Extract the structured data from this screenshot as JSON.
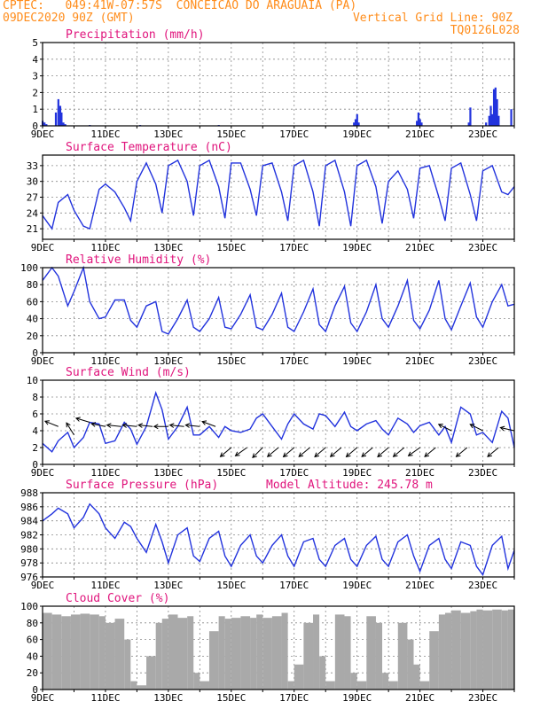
{
  "header": {
    "line1": "CPTEC:   049:41W-07:57S  CONCEICAO DO ARAGUAIA (PA)",
    "line2_left": "09DEC2020 90Z (GMT)",
    "line2_right": "Vertical Grid Line: 90Z",
    "line3_right": "TQ0126L028"
  },
  "colors": {
    "header": "#ff8c1a",
    "title": "#e0147c",
    "line": "#2233dd",
    "bar": "#2233dd",
    "cloud": "#a9a9a9",
    "wind_arrow": "#000000"
  },
  "chart_data": [
    {
      "type": "bar",
      "title": "Precipitation (mm/h)",
      "ylim": [
        0,
        5
      ],
      "yticks": [
        0,
        1,
        2,
        3,
        4,
        5
      ],
      "x_tick_labels": [
        "9DEC",
        "11DEC",
        "13DEC",
        "15DEC",
        "17DEC",
        "19DEC",
        "21DEC",
        "23DEC"
      ],
      "x_range_days": [
        9,
        24
      ],
      "x": [
        9.0,
        9.06,
        9.12,
        9.42,
        9.5,
        9.56,
        9.6,
        9.66,
        9.72,
        10.5,
        12.1,
        14.6,
        18.9,
        18.95,
        19.0,
        19.05,
        20.9,
        20.95,
        21.0,
        21.05,
        22.55,
        22.6,
        23.1,
        23.2,
        23.25,
        23.3,
        23.35,
        23.4,
        23.45,
        23.5,
        23.9
      ],
      "values": [
        0.3,
        0.2,
        0.1,
        0.8,
        1.6,
        1.2,
        0.8,
        0.2,
        0.1,
        0.05,
        0.05,
        0.05,
        0.2,
        0.4,
        0.7,
        0.2,
        0.3,
        0.8,
        0.4,
        0.2,
        0.2,
        1.1,
        0.2,
        0.6,
        1.2,
        0.7,
        2.2,
        2.3,
        1.6,
        0.6,
        1.0
      ]
    },
    {
      "type": "line",
      "title": "Surface Temperature (nC)",
      "ylim": [
        19,
        35
      ],
      "yticks": [
        21,
        24,
        27,
        30,
        33
      ],
      "x_tick_labels": [
        "9DEC",
        "11DEC",
        "13DEC",
        "15DEC",
        "17DEC",
        "19DEC",
        "21DEC",
        "23DEC"
      ],
      "x_range_days": [
        9,
        24
      ],
      "x": [
        9.0,
        9.3,
        9.5,
        9.8,
        10.0,
        10.3,
        10.5,
        10.8,
        11.0,
        11.3,
        11.6,
        11.8,
        12.0,
        12.3,
        12.6,
        12.8,
        13.0,
        13.3,
        13.6,
        13.8,
        14.0,
        14.3,
        14.6,
        14.8,
        15.0,
        15.3,
        15.6,
        15.8,
        16.0,
        16.3,
        16.6,
        16.8,
        17.0,
        17.3,
        17.6,
        17.8,
        18.0,
        18.3,
        18.6,
        18.8,
        19.0,
        19.3,
        19.6,
        19.8,
        20.0,
        20.3,
        20.6,
        20.8,
        21.0,
        21.3,
        21.6,
        21.8,
        22.0,
        22.3,
        22.6,
        22.8,
        23.0,
        23.3,
        23.6,
        23.8,
        24.0
      ],
      "values": [
        23.5,
        21.0,
        26.0,
        27.5,
        24.5,
        21.5,
        21.0,
        28.5,
        29.5,
        28.0,
        25.0,
        22.5,
        30.0,
        33.5,
        29.5,
        24.0,
        33.0,
        34.0,
        30.0,
        23.5,
        33.0,
        34.0,
        29.0,
        23.0,
        33.5,
        33.5,
        28.5,
        23.5,
        33.0,
        33.5,
        28.0,
        22.5,
        33.0,
        34.0,
        28.0,
        21.5,
        33.0,
        34.0,
        28.0,
        21.5,
        33.0,
        34.0,
        29.0,
        22.0,
        30.0,
        32.0,
        28.5,
        23.0,
        32.5,
        33.0,
        27.0,
        22.5,
        32.5,
        33.5,
        27.5,
        22.5,
        32.0,
        33.0,
        28.0,
        27.5,
        29.0
      ]
    },
    {
      "type": "line",
      "title": "Relative Humidity (%)",
      "ylim": [
        0,
        100
      ],
      "yticks": [
        0,
        20,
        40,
        60,
        80,
        100
      ],
      "x_tick_labels": [
        "9DEC",
        "11DEC",
        "13DEC",
        "15DEC",
        "17DEC",
        "19DEC",
        "21DEC",
        "23DEC"
      ],
      "x_range_days": [
        9,
        24
      ],
      "x": [
        9.0,
        9.3,
        9.5,
        9.8,
        10.0,
        10.3,
        10.5,
        10.8,
        11.0,
        11.3,
        11.6,
        11.8,
        12.0,
        12.3,
        12.6,
        12.8,
        13.0,
        13.3,
        13.6,
        13.8,
        14.0,
        14.3,
        14.6,
        14.8,
        15.0,
        15.3,
        15.6,
        15.8,
        16.0,
        16.3,
        16.6,
        16.8,
        17.0,
        17.3,
        17.6,
        17.8,
        18.0,
        18.3,
        18.6,
        18.8,
        19.0,
        19.3,
        19.6,
        19.8,
        20.0,
        20.3,
        20.6,
        20.8,
        21.0,
        21.3,
        21.6,
        21.8,
        22.0,
        22.3,
        22.6,
        22.8,
        23.0,
        23.3,
        23.6,
        23.8,
        24.0
      ],
      "values": [
        85,
        100,
        90,
        55,
        72,
        100,
        60,
        40,
        42,
        62,
        62,
        38,
        30,
        55,
        60,
        25,
        22,
        40,
        62,
        30,
        25,
        40,
        65,
        30,
        28,
        45,
        68,
        30,
        27,
        45,
        70,
        30,
        25,
        48,
        75,
        33,
        25,
        55,
        78,
        35,
        25,
        48,
        80,
        40,
        30,
        55,
        85,
        38,
        28,
        50,
        85,
        40,
        27,
        55,
        82,
        42,
        30,
        60,
        80,
        55,
        57
      ]
    },
    {
      "type": "line",
      "title": "Surface Wind (m/s)",
      "ylim": [
        0,
        10
      ],
      "yticks": [
        0,
        2,
        4,
        6,
        8,
        10
      ],
      "x_tick_labels": [
        "9DEC",
        "11DEC",
        "13DEC",
        "15DEC",
        "17DEC",
        "19DEC",
        "21DEC",
        "23DEC"
      ],
      "x_range_days": [
        9,
        24
      ],
      "x": [
        9.0,
        9.3,
        9.5,
        9.8,
        10.0,
        10.3,
        10.5,
        10.8,
        11.0,
        11.3,
        11.6,
        11.8,
        12.0,
        12.3,
        12.6,
        12.8,
        13.0,
        13.3,
        13.6,
        13.8,
        14.0,
        14.3,
        14.6,
        14.8,
        15.0,
        15.3,
        15.6,
        15.8,
        16.0,
        16.3,
        16.6,
        16.8,
        17.0,
        17.3,
        17.6,
        17.8,
        18.0,
        18.3,
        18.6,
        18.8,
        19.0,
        19.3,
        19.6,
        19.8,
        20.0,
        20.3,
        20.6,
        20.8,
        21.0,
        21.3,
        21.6,
        21.8,
        22.0,
        22.3,
        22.6,
        22.8,
        23.0,
        23.3,
        23.6,
        23.8,
        24.0
      ],
      "values": [
        2.5,
        1.5,
        2.8,
        3.8,
        2.0,
        3.2,
        5.0,
        4.8,
        2.5,
        2.8,
        5.0,
        4.2,
        2.4,
        4.5,
        8.5,
        6.5,
        3.0,
        4.5,
        6.8,
        3.5,
        3.5,
        4.5,
        3.2,
        4.5,
        4.0,
        3.8,
        4.2,
        5.5,
        6.0,
        4.5,
        3.0,
        4.8,
        6.0,
        4.8,
        4.2,
        6.0,
        5.8,
        4.5,
        6.2,
        4.5,
        4.0,
        4.8,
        5.2,
        4.2,
        3.5,
        5.5,
        4.8,
        3.8,
        4.6,
        5.0,
        3.5,
        4.5,
        2.6,
        6.8,
        6.0,
        3.5,
        3.8,
        2.6,
        6.3,
        5.5,
        2.0
      ]
    },
    {
      "type": "line",
      "title": "Surface Pressure (hPa)",
      "annotation": "Model Altitude: 245.78 m",
      "ylim": [
        976,
        988
      ],
      "yticks": [
        976,
        978,
        980,
        982,
        984,
        986,
        988
      ],
      "x_tick_labels": [
        "9DEC",
        "11DEC",
        "13DEC",
        "15DEC",
        "17DEC",
        "19DEC",
        "21DEC",
        "23DEC"
      ],
      "x_range_days": [
        9,
        24
      ],
      "x": [
        9.0,
        9.3,
        9.5,
        9.8,
        10.0,
        10.3,
        10.5,
        10.8,
        11.0,
        11.3,
        11.6,
        11.8,
        12.0,
        12.3,
        12.6,
        12.8,
        13.0,
        13.3,
        13.6,
        13.8,
        14.0,
        14.3,
        14.6,
        14.8,
        15.0,
        15.3,
        15.6,
        15.8,
        16.0,
        16.3,
        16.6,
        16.8,
        17.0,
        17.3,
        17.6,
        17.8,
        18.0,
        18.3,
        18.6,
        18.8,
        19.0,
        19.3,
        19.6,
        19.8,
        20.0,
        20.3,
        20.6,
        20.8,
        21.0,
        21.3,
        21.6,
        21.8,
        22.0,
        22.3,
        22.6,
        22.8,
        23.0,
        23.3,
        23.6,
        23.8,
        24.0
      ],
      "values": [
        984.0,
        985.0,
        985.8,
        985.0,
        983.0,
        984.5,
        986.4,
        985.0,
        983.0,
        981.5,
        983.8,
        983.2,
        981.5,
        979.5,
        983.5,
        981.0,
        978.0,
        982.0,
        983.0,
        979.0,
        978.2,
        981.5,
        982.5,
        979.0,
        977.5,
        980.5,
        982.0,
        979.0,
        978.0,
        980.5,
        982.0,
        979.0,
        977.5,
        981.0,
        981.5,
        978.5,
        977.5,
        980.5,
        981.5,
        978.5,
        977.5,
        980.5,
        981.8,
        978.5,
        977.5,
        981.0,
        982.0,
        979.0,
        976.8,
        980.5,
        981.5,
        978.5,
        977.2,
        981.0,
        980.5,
        977.5,
        976.3,
        980.5,
        981.8,
        977.2,
        979.8
      ]
    },
    {
      "type": "area",
      "title": "Cloud Cover (%)",
      "ylim": [
        0,
        100
      ],
      "yticks": [
        0,
        20,
        40,
        60,
        80,
        100
      ],
      "x_tick_labels": [
        "9DEC",
        "11DEC",
        "13DEC",
        "15DEC",
        "17DEC",
        "19DEC",
        "21DEC",
        "23DEC"
      ],
      "x_range_days": [
        9,
        24
      ],
      "x": [
        9.0,
        9.3,
        9.6,
        9.9,
        10.2,
        10.5,
        10.8,
        11.0,
        11.3,
        11.6,
        11.8,
        12.0,
        12.3,
        12.6,
        12.8,
        13.0,
        13.3,
        13.6,
        13.8,
        14.0,
        14.3,
        14.6,
        14.8,
        15.0,
        15.3,
        15.6,
        15.8,
        16.0,
        16.3,
        16.6,
        16.8,
        17.0,
        17.3,
        17.6,
        17.8,
        18.0,
        18.3,
        18.6,
        18.8,
        19.0,
        19.3,
        19.6,
        19.8,
        20.0,
        20.3,
        20.6,
        20.8,
        21.0,
        21.3,
        21.6,
        21.8,
        22.0,
        22.3,
        22.6,
        22.8,
        23.0,
        23.3,
        23.6,
        23.8,
        24.0
      ],
      "values": [
        92,
        90,
        88,
        90,
        91,
        90,
        88,
        80,
        85,
        60,
        10,
        5,
        40,
        80,
        85,
        90,
        86,
        88,
        20,
        10,
        70,
        88,
        85,
        86,
        88,
        86,
        90,
        86,
        88,
        92,
        10,
        30,
        80,
        90,
        40,
        10,
        90,
        88,
        20,
        10,
        88,
        80,
        20,
        10,
        80,
        60,
        30,
        10,
        70,
        90,
        92,
        95,
        92,
        94,
        96,
        95,
        96,
        95,
        96,
        94
      ]
    },
    {
      "type": "wind_vectors",
      "x": [
        9.5,
        10.0,
        10.5,
        11.0,
        11.5,
        12.0,
        12.5,
        13.0,
        13.5,
        14.0,
        14.5,
        15.0,
        15.5,
        16.0,
        16.5,
        17.0,
        17.5,
        18.0,
        18.5,
        19.0,
        19.5,
        20.0,
        20.5,
        21.0,
        21.5,
        22.0,
        22.5,
        23.0,
        23.5,
        24.0
      ],
      "speed": [
        4.5,
        3.5,
        5.0,
        4.5,
        4.5,
        4.5,
        4.5,
        4.5,
        4.5,
        4.5,
        4.5,
        2.0,
        2.0,
        2.0,
        2.0,
        2.0,
        2.0,
        2.0,
        2.0,
        2.0,
        2.0,
        2.0,
        2.0,
        2.0,
        2.0,
        4.0,
        2.0,
        4.0,
        2.0,
        4.0
      ],
      "u": [
        -1,
        -0.5,
        -1,
        -1,
        -1,
        -1,
        -1,
        -1,
        -1,
        -1,
        -0.8,
        -0.6,
        -0.7,
        -0.6,
        -0.6,
        -0.7,
        -0.6,
        -0.7,
        -0.6,
        -0.7,
        -0.6,
        -0.7,
        -0.6,
        -0.7,
        -0.6,
        -0.8,
        -0.6,
        -0.8,
        -0.6,
        -0.9
      ],
      "v": [
        0.4,
        0.8,
        0.3,
        0.2,
        0.1,
        0.1,
        0.1,
        0.0,
        0.1,
        0.1,
        0.3,
        -0.5,
        -0.5,
        -0.6,
        -0.5,
        -0.6,
        -0.5,
        -0.6,
        -0.5,
        -0.6,
        -0.5,
        -0.6,
        -0.5,
        -0.5,
        -0.5,
        0.4,
        -0.5,
        0.4,
        -0.5,
        0.2
      ]
    }
  ]
}
